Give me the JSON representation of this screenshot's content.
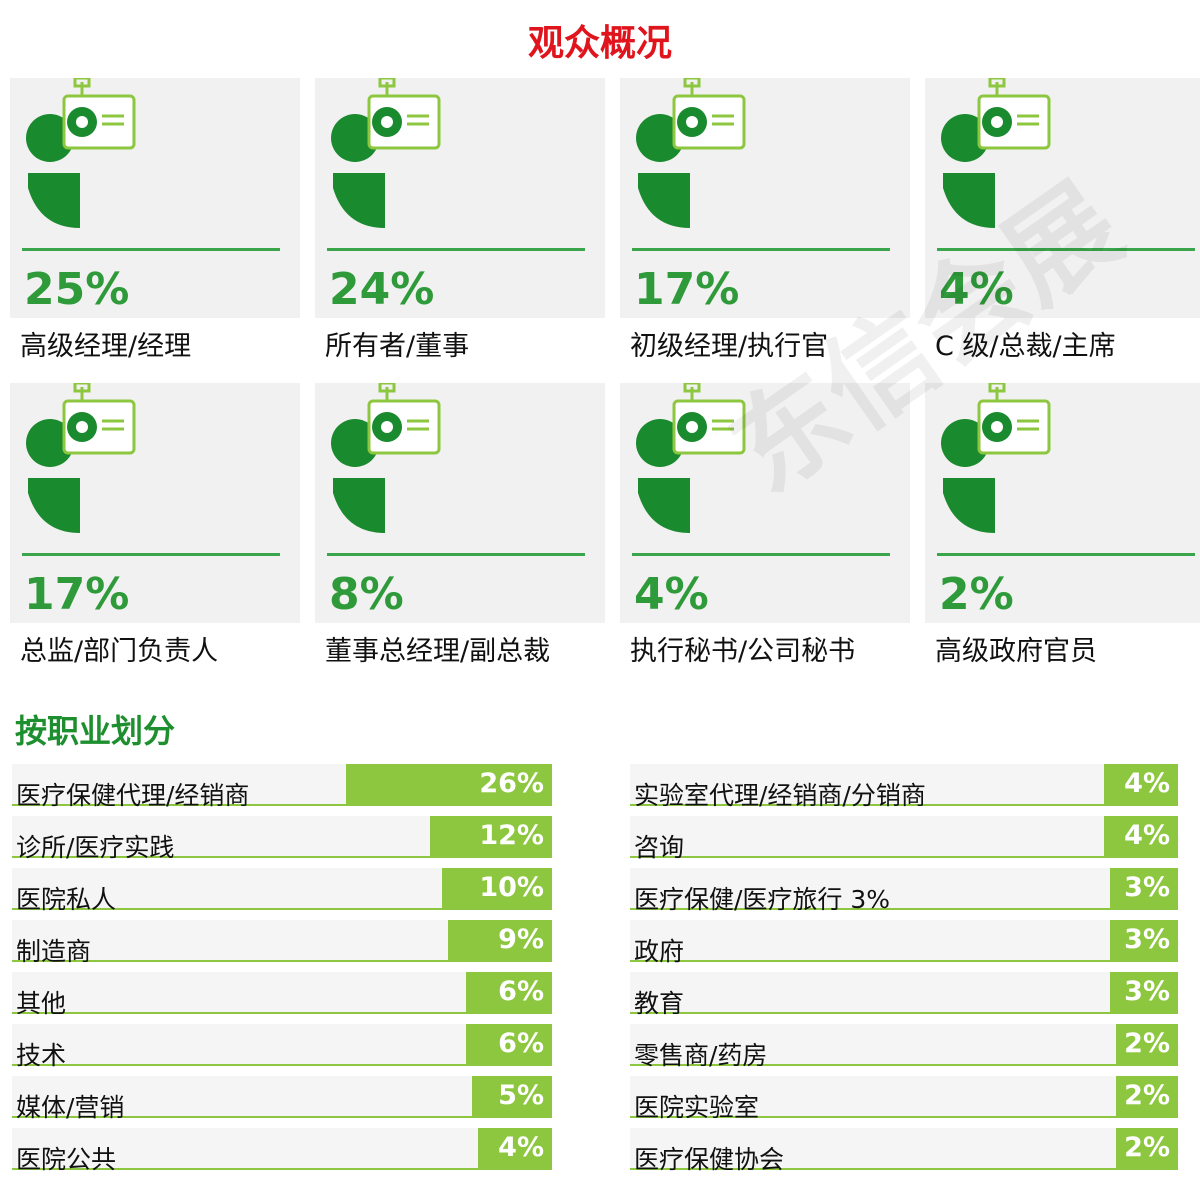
{
  "title": "观众概况",
  "watermark": "东信会展",
  "cards": [
    {
      "value_label": "25%",
      "label": "高级经理/经理"
    },
    {
      "value_label": "24%",
      "label": "所有者/董事"
    },
    {
      "value_label": "17%",
      "label": "初级经理/执行官"
    },
    {
      "value_label": "4%",
      "label": "C 级/总裁/主席"
    },
    {
      "value_label": "17%",
      "label": "总监/部门负责人"
    },
    {
      "value_label": "8%",
      "label": "董事总经理/副总裁"
    },
    {
      "value_label": "4%",
      "label": "执行秘书/公司秘书"
    },
    {
      "value_label": "2%",
      "label": "高级政府官员"
    }
  ],
  "section_title": "按职业划分",
  "columns": [
    [
      {
        "label": "医疗保健代理/经销商",
        "value": 26,
        "value_label": "26%"
      },
      {
        "label": "诊所/医疗实践",
        "value": 12,
        "value_label": "12%"
      },
      {
        "label": "医院私人",
        "value": 10,
        "value_label": "10%"
      },
      {
        "label": "制造商",
        "value": 9,
        "value_label": "9%"
      },
      {
        "label": "其他",
        "value": 6,
        "value_label": "6%"
      },
      {
        "label": "技术",
        "value": 6,
        "value_label": "6%"
      },
      {
        "label": "媒体/营销",
        "value": 5,
        "value_label": "5%"
      },
      {
        "label": "医院公共",
        "value": 4,
        "value_label": "4%"
      }
    ],
    [
      {
        "label": "实验室代理/经销商/分销商",
        "value": 4,
        "value_label": "4%"
      },
      {
        "label": "咨询",
        "value": 4,
        "value_label": "4%"
      },
      {
        "label": "医疗保健/医疗旅行 3%",
        "value": 3,
        "value_label": "3%"
      },
      {
        "label": "政府",
        "value": 3,
        "value_label": "3%"
      },
      {
        "label": "教育",
        "value": 3,
        "value_label": "3%"
      },
      {
        "label": "零售商/药房",
        "value": 2,
        "value_label": "2%"
      },
      {
        "label": "医院实验室",
        "value": 2,
        "value_label": "2%"
      },
      {
        "label": "医疗保健协会",
        "value": 2,
        "value_label": "2%"
      }
    ]
  ]
}
